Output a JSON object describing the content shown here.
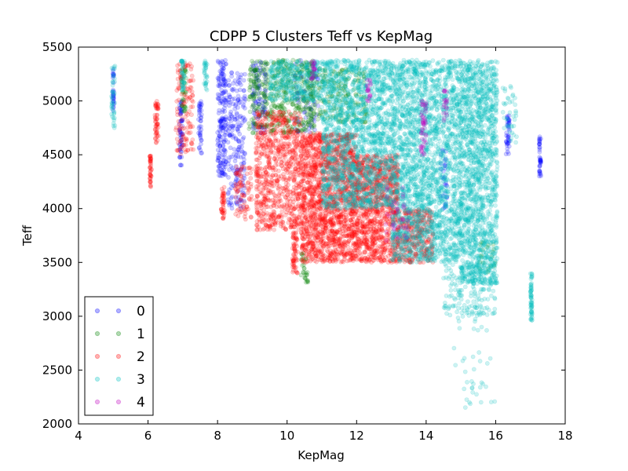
{
  "chart_data": {
    "type": "scatter",
    "title": "CDPP 5 Clusters Teff vs KepMag",
    "xlabel": "KepMag",
    "ylabel": "Teff",
    "xlim": [
      4,
      18
    ],
    "ylim": [
      2000,
      5500
    ],
    "xticks": [
      "4",
      "6",
      "8",
      "10",
      "12",
      "14",
      "16",
      "18"
    ],
    "yticks": [
      "2000",
      "2500",
      "3000",
      "3500",
      "4000",
      "4500",
      "5000",
      "5500"
    ],
    "grid": false,
    "legend_position": "lower-left",
    "marker_alpha": 0.2,
    "series": [
      {
        "name": "0",
        "color": "#0000ff",
        "regions": [
          {
            "x": [
              4.98,
              5.02
            ],
            "y": [
              4900,
              5300
            ],
            "n": 30
          },
          {
            "x": [
              6.9,
              7.0
            ],
            "y": [
              4400,
              5000
            ],
            "n": 60
          },
          {
            "x": [
              7.45,
              7.55
            ],
            "y": [
              4500,
              5000
            ],
            "n": 40
          },
          {
            "x": [
              8.0,
              8.25
            ],
            "y": [
              4300,
              5380
            ],
            "n": 180
          },
          {
            "x": [
              8.3,
              8.8
            ],
            "y": [
              4000,
              5300
            ],
            "n": 200
          },
          {
            "x": [
              9.0,
              9.4
            ],
            "y": [
              4700,
              5380
            ],
            "n": 90
          },
          {
            "x": [
              10.2,
              10.9
            ],
            "y": [
              4700,
              5380
            ],
            "n": 70
          },
          {
            "x": [
              14.4,
              14.6
            ],
            "y": [
              4000,
              4600
            ],
            "n": 30
          },
          {
            "x": [
              16.3,
              16.4
            ],
            "y": [
              4500,
              4900
            ],
            "n": 40
          },
          {
            "x": [
              17.25,
              17.3
            ],
            "y": [
              4300,
              4700
            ],
            "n": 40
          }
        ]
      },
      {
        "name": "1",
        "color": "#008000",
        "regions": [
          {
            "x": [
              6.95,
              7.1
            ],
            "y": [
              4900,
              5300
            ],
            "n": 40
          },
          {
            "x": [
              8.9,
              10.8
            ],
            "y": [
              4700,
              5380
            ],
            "n": 500
          },
          {
            "x": [
              10.4,
              10.6
            ],
            "y": [
              3300,
              3600
            ],
            "n": 30
          },
          {
            "x": [
              10.6,
              12.3
            ],
            "y": [
              4800,
              5300
            ],
            "n": 200
          },
          {
            "x": [
              15.5,
              16.0
            ],
            "y": [
              3400,
              3700
            ],
            "n": 20
          }
        ]
      },
      {
        "name": "2",
        "color": "#ff0000",
        "regions": [
          {
            "x": [
              6.05,
              6.1
            ],
            "y": [
              4200,
              4500
            ],
            "n": 40
          },
          {
            "x": [
              6.2,
              6.3
            ],
            "y": [
              4600,
              5000
            ],
            "n": 50
          },
          {
            "x": [
              6.8,
              7.3
            ],
            "y": [
              4500,
              5350
            ],
            "n": 120
          },
          {
            "x": [
              8.1,
              8.2
            ],
            "y": [
              3900,
              4200
            ],
            "n": 40
          },
          {
            "x": [
              8.5,
              9.0
            ],
            "y": [
              3900,
              4400
            ],
            "n": 80
          },
          {
            "x": [
              9.1,
              10.4
            ],
            "y": [
              3800,
              4900
            ],
            "n": 700
          },
          {
            "x": [
              10.4,
              12.0
            ],
            "y": [
              3500,
              4700
            ],
            "n": 1500
          },
          {
            "x": [
              12.0,
              13.2
            ],
            "y": [
              3500,
              4500
            ],
            "n": 900
          },
          {
            "x": [
              13.2,
              14.2
            ],
            "y": [
              3500,
              4000
            ],
            "n": 300
          },
          {
            "x": [
              10.15,
              10.3
            ],
            "y": [
              3400,
              3800
            ],
            "n": 60
          }
        ]
      },
      {
        "name": "3",
        "color": "#00bfbf",
        "regions": [
          {
            "x": [
              4.95,
              5.05
            ],
            "y": [
              4750,
              5330
            ],
            "n": 40
          },
          {
            "x": [
              6.95,
              7.05
            ],
            "y": [
              5100,
              5380
            ],
            "n": 40
          },
          {
            "x": [
              7.6,
              7.7
            ],
            "y": [
              5100,
              5380
            ],
            "n": 30
          },
          {
            "x": [
              9.5,
              11.0
            ],
            "y": [
              5000,
              5380
            ],
            "n": 300
          },
          {
            "x": [
              11.0,
              13.0
            ],
            "y": [
              4000,
              5380
            ],
            "n": 1600
          },
          {
            "x": [
              13.0,
              15.0
            ],
            "y": [
              3500,
              5380
            ],
            "n": 2200
          },
          {
            "x": [
              15.0,
              16.05
            ],
            "y": [
              3300,
              5380
            ],
            "n": 1400
          },
          {
            "x": [
              14.5,
              16.0
            ],
            "y": [
              3000,
              3500
            ],
            "n": 180
          },
          {
            "x": [
              14.8,
              16.0
            ],
            "y": [
              2150,
              3000
            ],
            "n": 40
          },
          {
            "x": [
              16.2,
              16.6
            ],
            "y": [
              4600,
              5200
            ],
            "n": 40
          },
          {
            "x": [
              17.0,
              17.05
            ],
            "y": [
              2950,
              3400
            ],
            "n": 60
          }
        ]
      },
      {
        "name": "4",
        "color": "#bf00bf",
        "regions": [
          {
            "x": [
              10.7,
              10.8
            ],
            "y": [
              5200,
              5380
            ],
            "n": 20
          },
          {
            "x": [
              12.3,
              12.4
            ],
            "y": [
              5000,
              5200
            ],
            "n": 20
          },
          {
            "x": [
              13.85,
              14.0
            ],
            "y": [
              4500,
              5000
            ],
            "n": 50
          },
          {
            "x": [
              14.5,
              14.6
            ],
            "y": [
              4800,
              5100
            ],
            "n": 20
          },
          {
            "x": [
              12.8,
              13.5
            ],
            "y": [
              3700,
              4200
            ],
            "n": 40
          }
        ]
      }
    ]
  }
}
